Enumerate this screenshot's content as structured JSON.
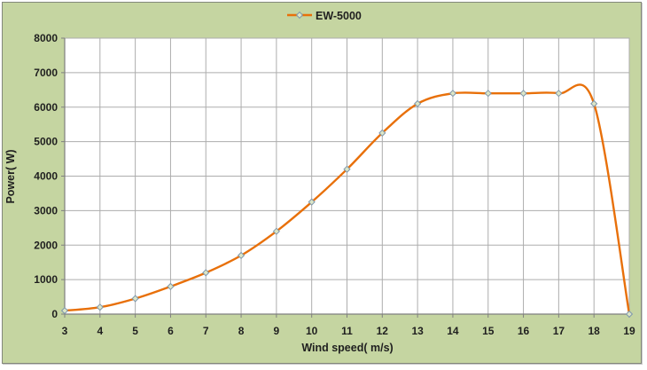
{
  "chart_data": {
    "type": "line",
    "title": "",
    "xlabel": "Wind speed( m/s)",
    "ylabel": "Power( W)",
    "xlim": [
      3,
      19
    ],
    "ylim": [
      0,
      8000
    ],
    "x_ticks": [
      3,
      4,
      5,
      6,
      7,
      8,
      9,
      10,
      11,
      12,
      13,
      14,
      15,
      16,
      17,
      18,
      19
    ],
    "y_ticks": [
      0,
      1000,
      2000,
      3000,
      4000,
      5000,
      6000,
      7000,
      8000
    ],
    "grid": true,
    "smooth": true,
    "legend_position": "top-center",
    "series": [
      {
        "name": "EW-5000",
        "marker": "diamond",
        "x": [
          3,
          4,
          5,
          6,
          7,
          8,
          9,
          10,
          11,
          12,
          13,
          14,
          15,
          16,
          17,
          18,
          19
        ],
        "y": [
          100,
          200,
          450,
          800,
          1200,
          1700,
          2400,
          3250,
          4200,
          5250,
          6100,
          6400,
          6400,
          6400,
          6400,
          6100,
          0
        ]
      }
    ],
    "colors": {
      "background": "#C5D5A1",
      "plot_background": "#FFFFFF",
      "gridline": "#ADADAD",
      "axis": "#7F7F7F",
      "line": "#E8700A",
      "marker_fill": "#DCE6C6",
      "marker_stroke": "#7E97AD",
      "text": "#1F1F1F",
      "frame_border": "#83887B"
    }
  }
}
